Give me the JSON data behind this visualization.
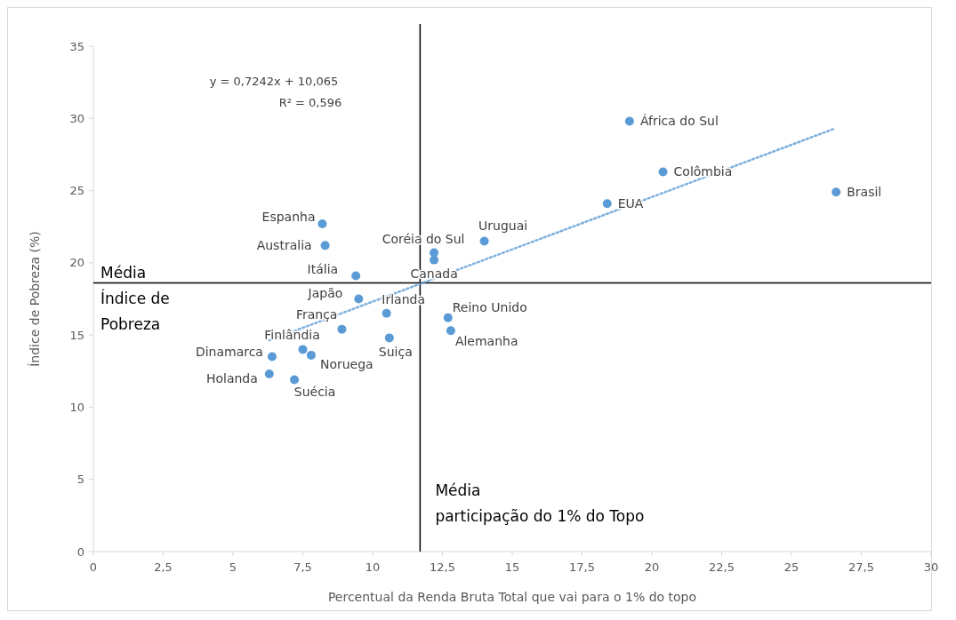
{
  "chart_data": {
    "type": "scatter",
    "xlabel": "Percentual da Renda Bruta Total que vai para o 1% do topo",
    "ylabel": "Índice de Pobreza (%)",
    "xlim": [
      0,
      30
    ],
    "xticks": [
      0,
      {
        "value": 2.5,
        "label": "2,5"
      },
      5,
      {
        "value": 7.5,
        "label": "7,5"
      },
      10,
      {
        "value": 12.5,
        "label": "12,5"
      },
      15,
      {
        "value": 17.5,
        "label": "17,5"
      },
      20,
      {
        "value": 22.5,
        "label": "22,5"
      },
      25,
      {
        "value": 27.5,
        "label": "27,5"
      },
      30
    ],
    "ylim": [
      0,
      35
    ],
    "yticks": [
      0,
      5,
      10,
      15,
      20,
      25,
      30,
      35
    ],
    "grid": false,
    "marker": "circle",
    "series": [
      {
        "color": "#5b9bd5",
        "x": [
          19.2,
          20.4,
          26.6,
          18.4,
          14.0,
          12.2,
          12.2,
          8.2,
          8.3,
          9.4,
          9.5,
          10.5,
          8.9,
          10.6,
          12.7,
          12.8,
          7.5,
          7.8,
          6.4,
          6.3,
          7.2
        ],
        "values": [
          29.8,
          26.3,
          24.9,
          24.1,
          21.5,
          20.7,
          20.2,
          22.7,
          21.2,
          19.1,
          17.5,
          16.5,
          15.4,
          14.8,
          16.2,
          15.3,
          14.0,
          13.6,
          13.5,
          12.3,
          11.9
        ]
      },
      {
        "type": "line",
        "color": "#5b9bd5",
        "line_style": "dotted",
        "marker": "none",
        "x": [
          6.3,
          26.5
        ],
        "values": [
          14.63,
          29.26
        ]
      }
    ],
    "ref_lines": [
      {
        "axis": "y",
        "value": 18.6,
        "label": "Média\nÍndice de\nPobreza",
        "color": "#000000"
      },
      {
        "axis": "x",
        "value": 11.7,
        "label": "Média\nparticipação do 1% do Topo",
        "color": "#000000"
      }
    ],
    "annotations": [
      {
        "text": "África do Sul",
        "x": 19.2,
        "y": 29.8
      },
      {
        "text": "Colômbia",
        "x": 20.4,
        "y": 26.3
      },
      {
        "text": "Brasil",
        "x": 26.6,
        "y": 24.9
      },
      {
        "text": "EUA",
        "x": 18.4,
        "y": 24.1
      },
      {
        "text": "Uruguai",
        "x": 14.0,
        "y": 21.5
      },
      {
        "text": "Coréia do Sul",
        "x": 12.2,
        "y": 20.7
      },
      {
        "text": "Canada",
        "x": 12.2,
        "y": 20.2
      },
      {
        "text": "Espanha",
        "x": 8.2,
        "y": 22.7
      },
      {
        "text": "Australia",
        "x": 8.3,
        "y": 21.2
      },
      {
        "text": "Itália",
        "x": 9.4,
        "y": 19.1
      },
      {
        "text": "Japão",
        "x": 9.5,
        "y": 17.5
      },
      {
        "text": "Irlanda",
        "x": 10.5,
        "y": 16.5
      },
      {
        "text": "França",
        "x": 8.9,
        "y": 15.4
      },
      {
        "text": "Suiça",
        "x": 10.6,
        "y": 14.8
      },
      {
        "text": "Reino Unido",
        "x": 12.7,
        "y": 16.2
      },
      {
        "text": "Alemanha",
        "x": 12.8,
        "y": 15.3
      },
      {
        "text": "Finlândia",
        "x": 7.5,
        "y": 14.0
      },
      {
        "text": "Noruega",
        "x": 7.8,
        "y": 13.6
      },
      {
        "text": "Dinamarca",
        "x": 6.4,
        "y": 13.5
      },
      {
        "text": "Holanda",
        "x": 6.3,
        "y": 12.3
      },
      {
        "text": "Suécia",
        "x": 7.2,
        "y": 11.9
      },
      "y = 0,7242x + 10,065",
      "R² = 0,596"
    ]
  }
}
